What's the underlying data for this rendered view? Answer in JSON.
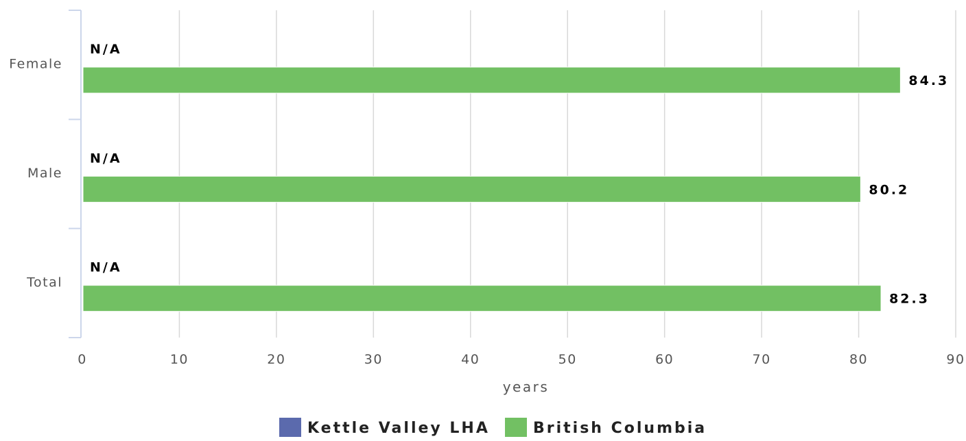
{
  "chart_data": {
    "type": "bar",
    "orientation": "horizontal",
    "categories": [
      "Female",
      "Male",
      "Total"
    ],
    "series": [
      {
        "name": "Kettle Valley LHA",
        "color": "#5b6aad",
        "values": [
          null,
          null,
          null
        ],
        "labels": [
          "N/A",
          "N/A",
          "N/A"
        ]
      },
      {
        "name": "British Columbia",
        "color": "#72c063",
        "values": [
          84.3,
          80.2,
          82.3
        ],
        "labels": [
          "84.3",
          "80.2",
          "82.3"
        ]
      }
    ],
    "xlabel": "years",
    "ylabel": "",
    "xlim": [
      0,
      90
    ],
    "x_ticks": [
      0,
      10,
      20,
      30,
      40,
      50,
      60,
      70,
      80,
      90
    ],
    "grid": true,
    "legend_position": "bottom"
  }
}
